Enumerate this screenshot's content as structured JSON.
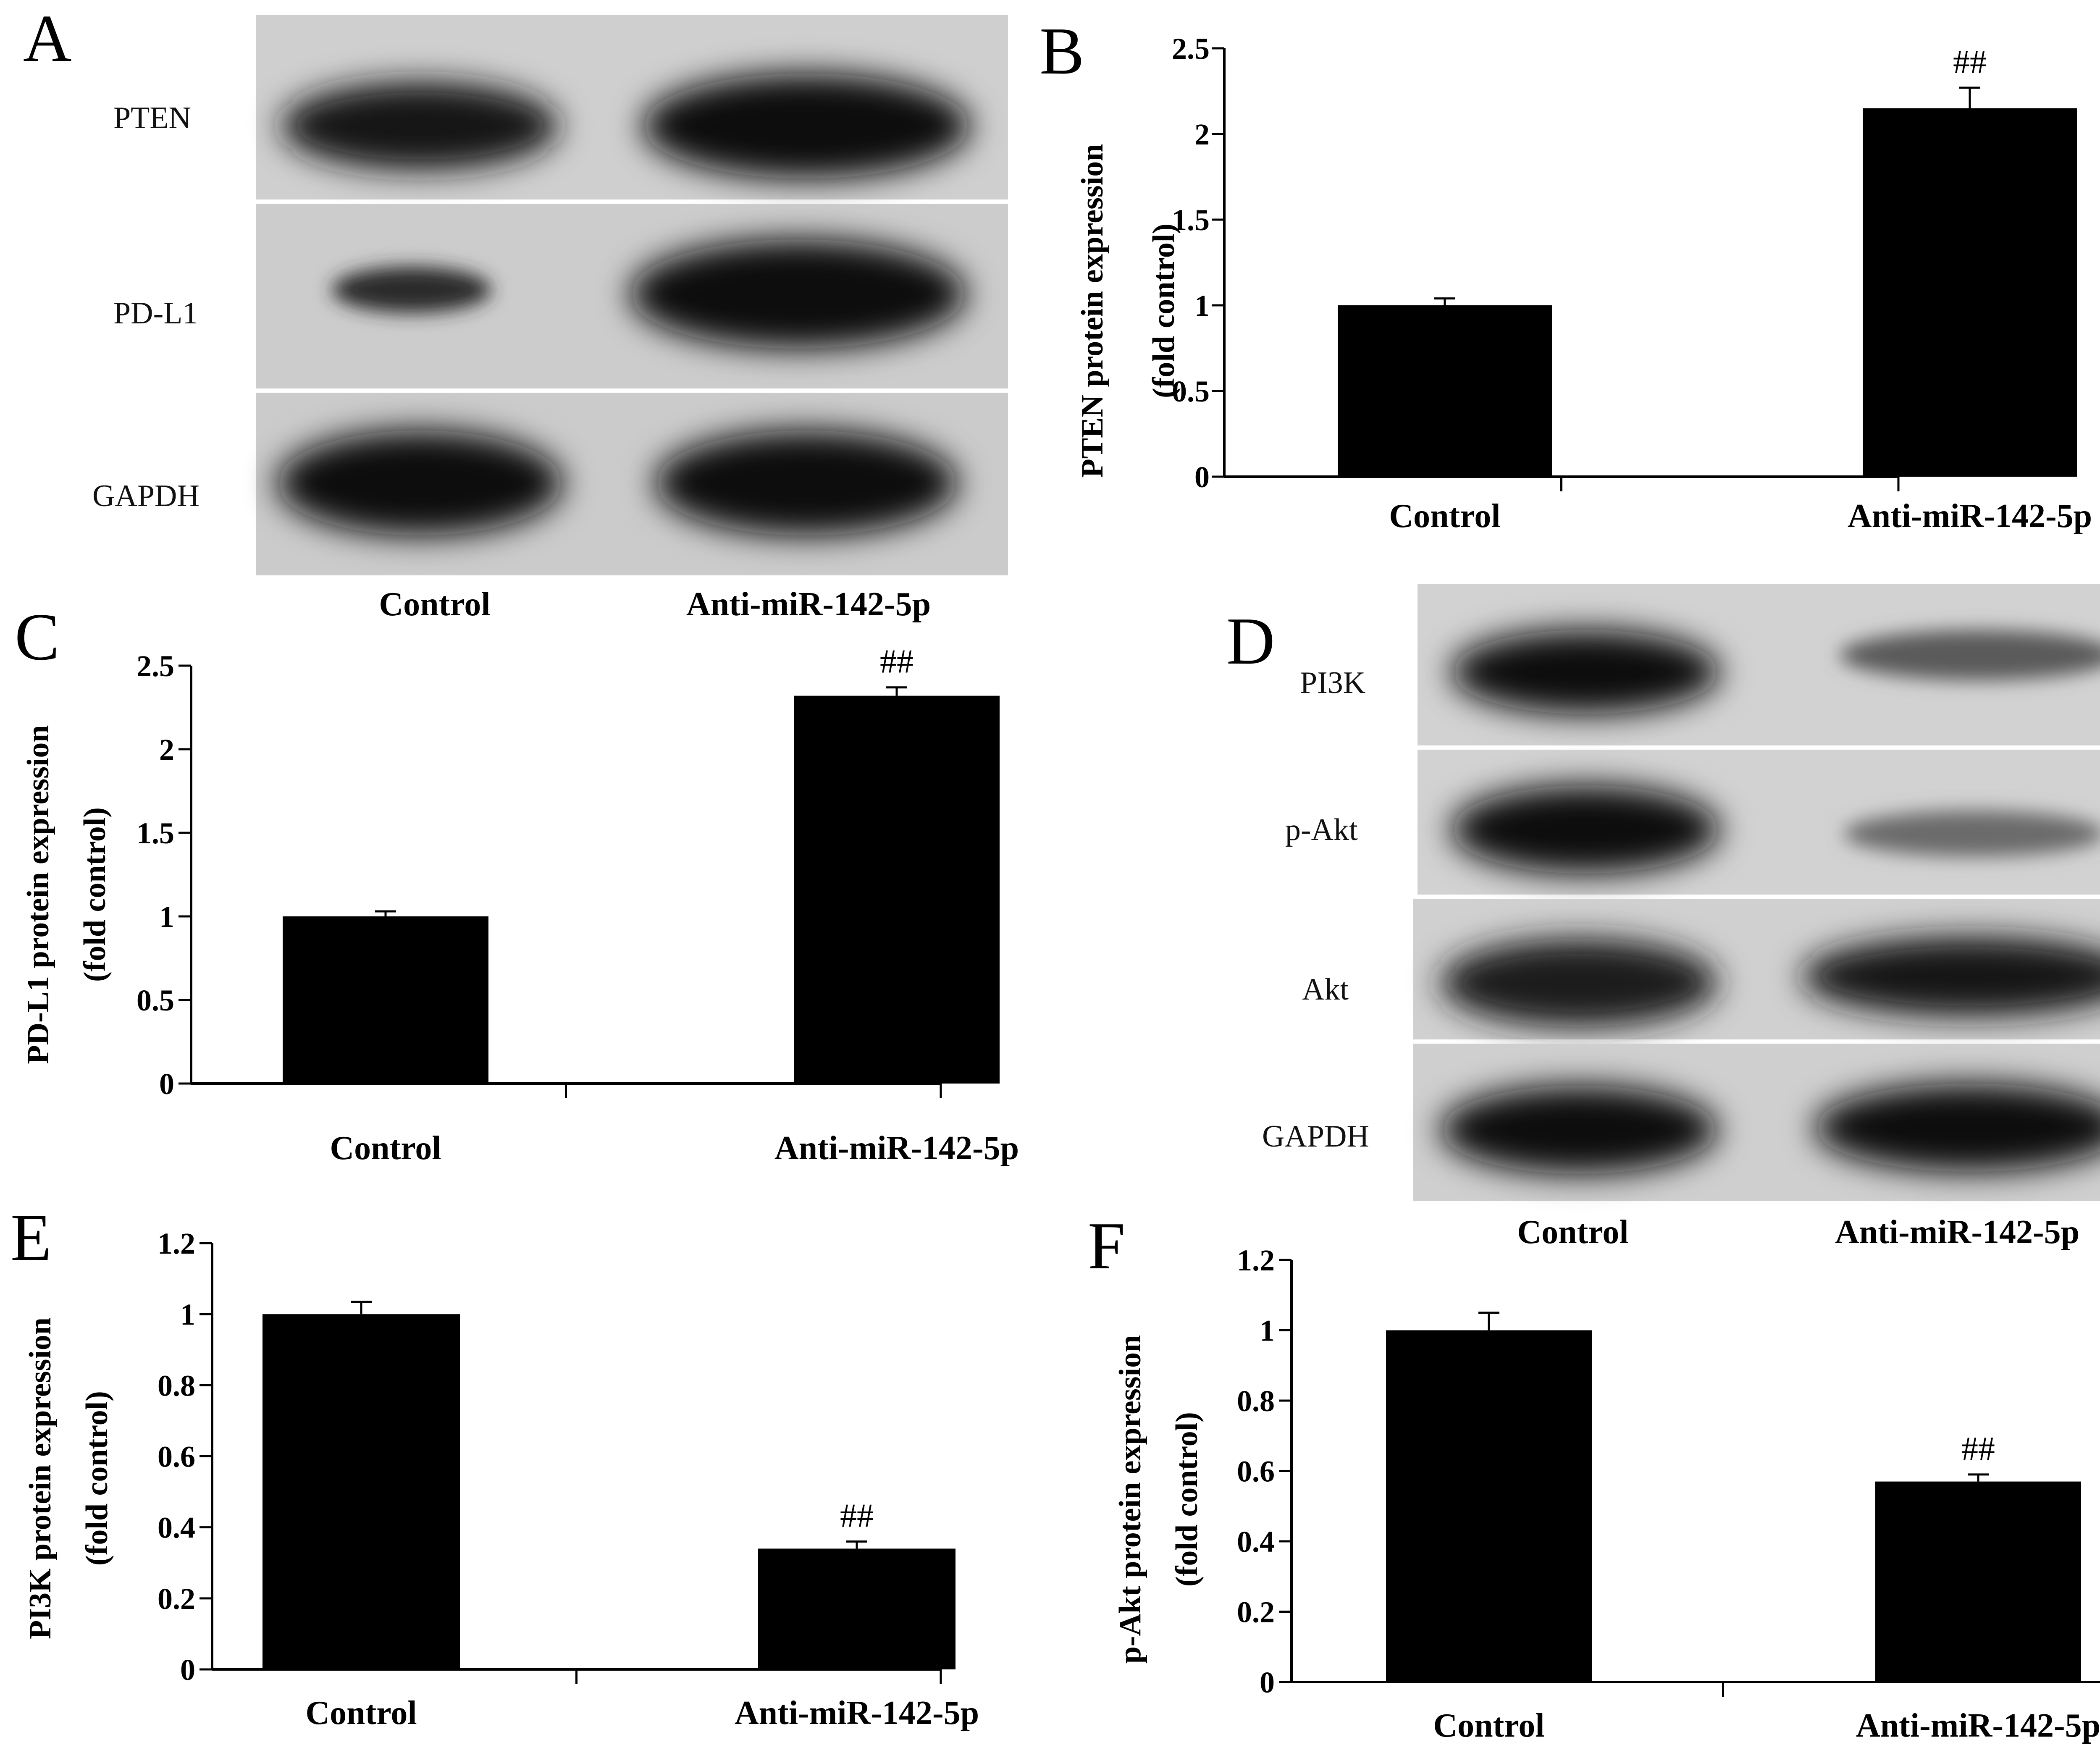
{
  "blots": [
    {
      "letter": "A",
      "proteins": [
        "PTEN",
        "PD-L1",
        "GAPDH"
      ],
      "lanes": [
        "Control",
        "Anti-miR-142-5p"
      ]
    },
    {
      "letter": "D",
      "proteins": [
        "PI3K",
        "p-Akt",
        "Akt",
        "GAPDH"
      ],
      "lanes": [
        "Control",
        "Anti-miR-142-5p"
      ]
    }
  ],
  "chart_data": [
    {
      "panel": "B",
      "type": "bar",
      "categories": [
        "Control",
        "Anti-miR-142-5p"
      ],
      "values": [
        1.0,
        2.15
      ],
      "errors": [
        0.04,
        0.12
      ],
      "annotations": [
        "",
        "##"
      ],
      "ylabel_lines": [
        "PTEN protein expression",
        "(fold control)"
      ],
      "ylim": [
        0,
        2.5
      ],
      "yticks": [
        "0",
        "0.5",
        "1",
        "1.5",
        "2",
        "2.5"
      ]
    },
    {
      "panel": "C",
      "type": "bar",
      "categories": [
        "Control",
        "Anti-miR-142-5p"
      ],
      "values": [
        1.0,
        2.32
      ],
      "errors": [
        0.03,
        0.05
      ],
      "annotations": [
        "",
        "##"
      ],
      "ylabel_lines": [
        "PD-L1 protein expression",
        "(fold control)"
      ],
      "ylim": [
        0,
        2.5
      ],
      "yticks": [
        "0",
        "0.5",
        "1",
        "1.5",
        "2",
        "2.5"
      ]
    },
    {
      "panel": "E",
      "type": "bar",
      "categories": [
        "Control",
        "Anti-miR-142-5p"
      ],
      "values": [
        1.0,
        0.34
      ],
      "errors": [
        0.035,
        0.02
      ],
      "annotations": [
        "",
        "##"
      ],
      "ylabel_lines": [
        "PI3K protein expression",
        "(fold control)"
      ],
      "ylim": [
        0,
        1.2
      ],
      "yticks": [
        "0",
        "0.2",
        "0.4",
        "0.6",
        "0.8",
        "1",
        "1.2"
      ]
    },
    {
      "panel": "F",
      "type": "bar",
      "categories": [
        "Control",
        "Anti-miR-142-5p"
      ],
      "values": [
        1.0,
        0.57
      ],
      "errors": [
        0.05,
        0.02
      ],
      "annotations": [
        "",
        "##"
      ],
      "ylabel_lines": [
        "p-Akt protein expression",
        "(fold control)"
      ],
      "ylim": [
        0,
        1.2
      ],
      "yticks": [
        "0",
        "0.2",
        "0.4",
        "0.6",
        "0.8",
        "1",
        "1.2"
      ]
    }
  ]
}
